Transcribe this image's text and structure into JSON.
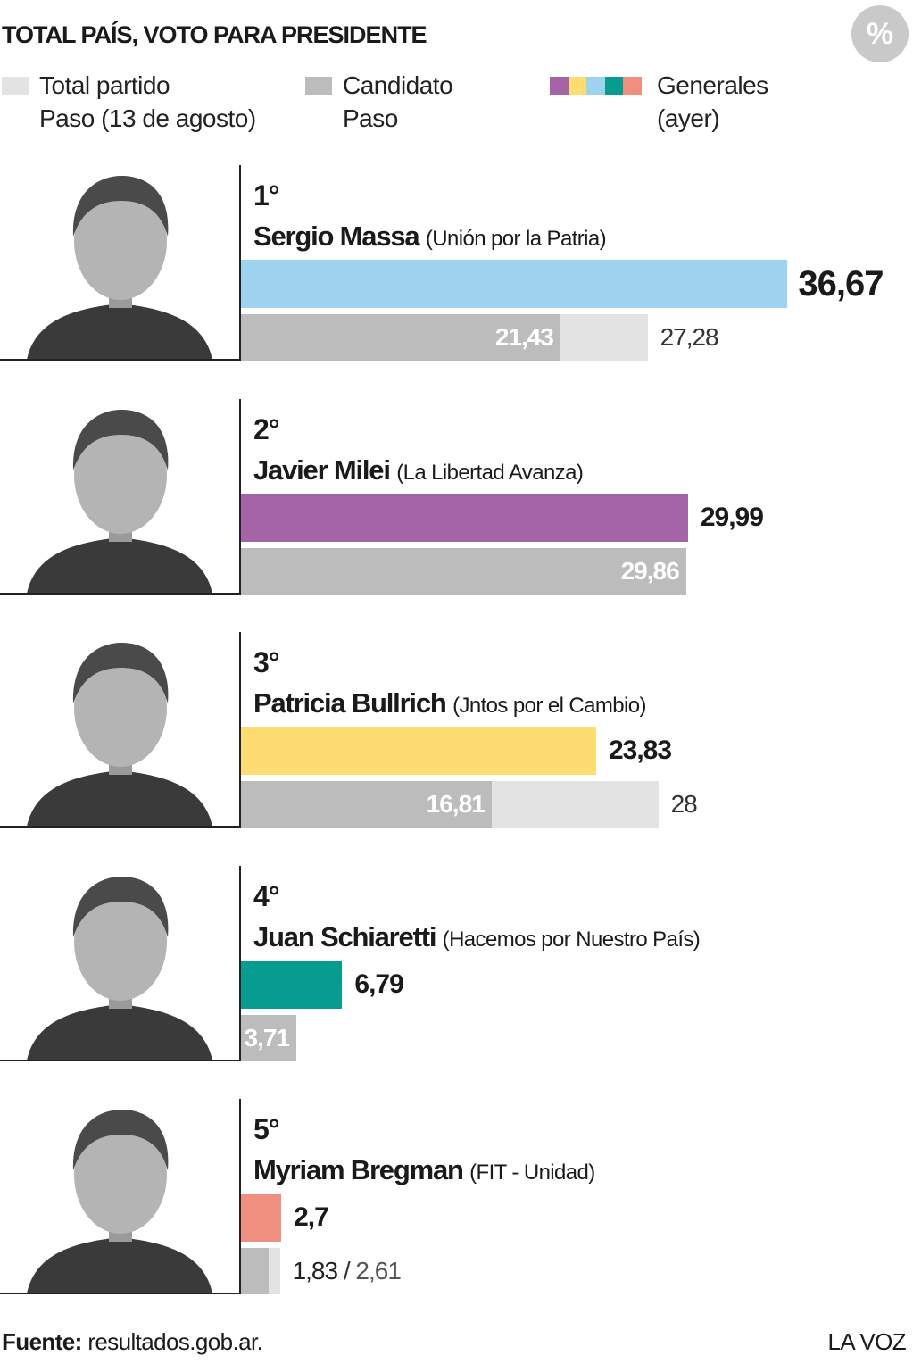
{
  "chart_data": {
    "type": "bar",
    "title": "TOTAL PAÍS, VOTO PARA PRESIDENTE",
    "unit_badge": "%",
    "ranks": [
      "1°",
      "2°",
      "3°",
      "4°",
      "5°"
    ],
    "categories": [
      "Sergio Massa",
      "Javier Milei",
      "Patricia Bullrich",
      "Juan Schiaretti",
      "Myriam Bregman"
    ],
    "parties": [
      "(Unión por la Patria)",
      "(La Libertad Avanza)",
      "(Jntos por el Cambio)",
      "(Hacemos por Nuestro País)",
      "(FIT - Unidad)"
    ],
    "series": [
      {
        "name": "Total partido\nPaso (13 de agosto)",
        "color": "#e3e3e3",
        "values": [
          27.28,
          null,
          28,
          null,
          2.61
        ],
        "value_labels": [
          "27,28",
          null,
          "28",
          null,
          "2,61"
        ]
      },
      {
        "name": "Candidato\nPaso",
        "color": "#bdbcbc",
        "values": [
          21.43,
          29.86,
          16.81,
          3.71,
          1.83
        ],
        "value_labels": [
          "21,43",
          "29,86",
          "16,81",
          "3,71",
          "1,83"
        ]
      },
      {
        "name": "Generales\n(ayer)",
        "colors": [
          "#9dd3ee",
          "#a464a6",
          "#fddd72",
          "#079c8f",
          "#ef8f7f"
        ],
        "legend_colors": [
          "#a464a6",
          "#fddd72",
          "#9dd3ee",
          "#079c8f",
          "#ef8f7f"
        ],
        "values": [
          36.67,
          29.99,
          23.83,
          6.79,
          2.7
        ],
        "value_labels": [
          "36,67",
          "29,99",
          "23,83",
          "6,79",
          "2,7"
        ]
      }
    ],
    "label_separator": "/",
    "source_label": "Fuente:",
    "source": "resultados.gob.ar.",
    "credit": "LA VOZ"
  }
}
